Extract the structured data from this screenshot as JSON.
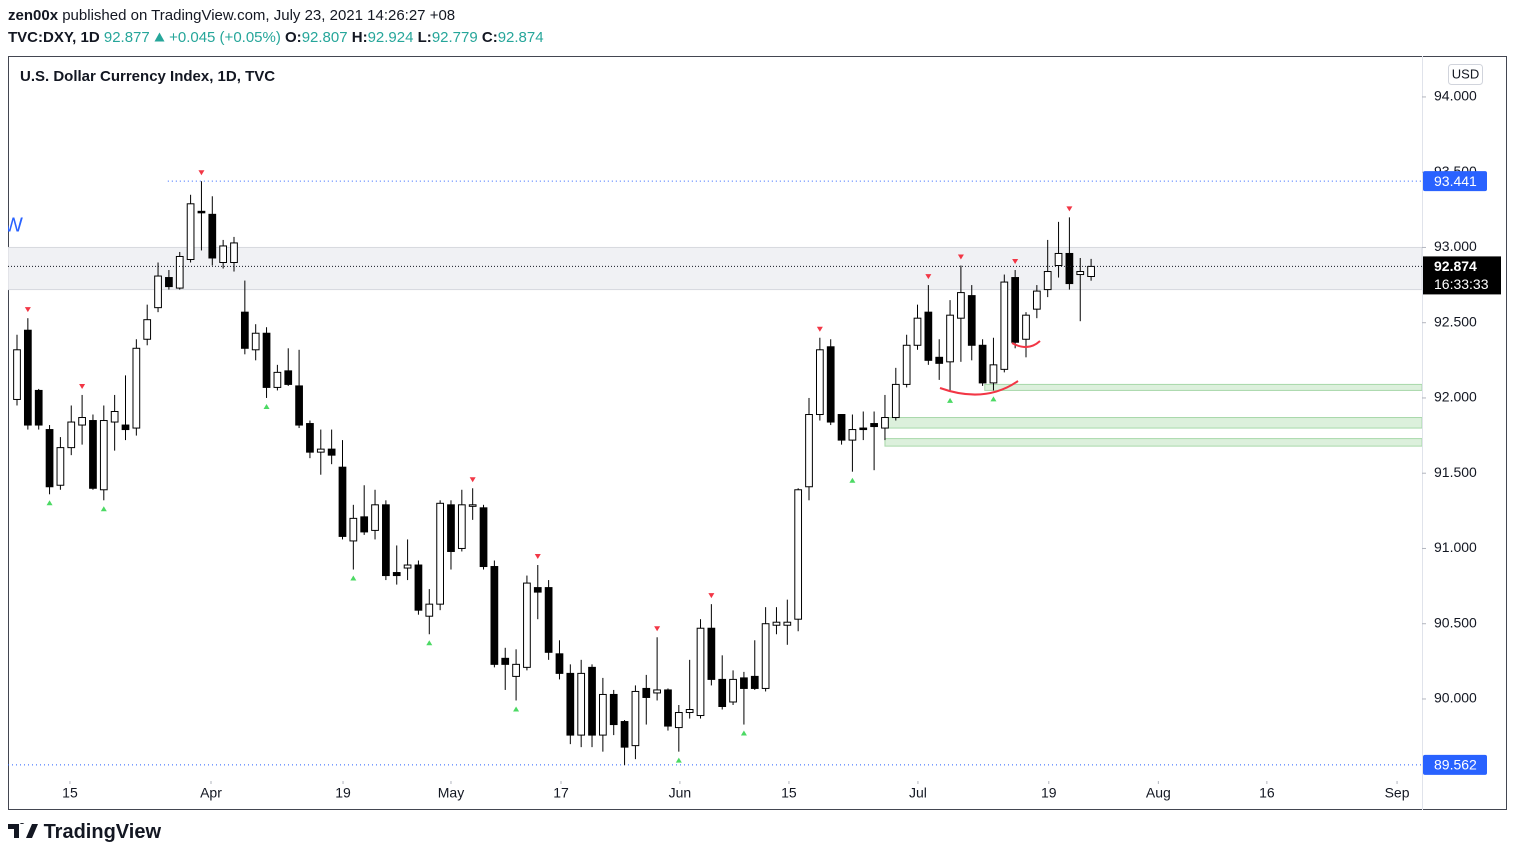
{
  "header": {
    "author": "zen00x",
    "published": "published on TradingView.com, July 23, 2021 14:26:27 +08",
    "symbol": "TVC:DXY, 1D",
    "last": 92.877,
    "change": "+0.045 (+0.05%)",
    "o": "O:",
    "h": "H:",
    "l": "L:",
    "c": "C:"
  },
  "chart_data": {
    "type": "candlestick",
    "title": "U.S. Dollar Currency Index, 1D, TVC",
    "currency": "USD",
    "countdown": "16:33:33",
    "edge_label": "W",
    "open": [
      91.99,
      92.45,
      92.05,
      91.79,
      91.42,
      91.67,
      91.82,
      91.85,
      91.39,
      91.84,
      91.82,
      91.8,
      92.39,
      92.6,
      92.8,
      92.73,
      92.92,
      93.24,
      93.22,
      92.9,
      92.9,
      92.57,
      92.32,
      92.43,
      92.07,
      92.18,
      92.08,
      91.83,
      91.64,
      91.66,
      91.54,
      91.05,
      91.21,
      91.12,
      91.29,
      90.84,
      90.87,
      90.89,
      90.55,
      90.63,
      91.29,
      91.0,
      91.28,
      91.27,
      90.88,
      90.27,
      90.15,
      90.21,
      90.74,
      90.74,
      90.3,
      90.17,
      89.76,
      90.21,
      89.76,
      90.03,
      89.85,
      89.69,
      90.07,
      90.04,
      90.06,
      89.81,
      89.91,
      89.89,
      90.47,
      90.13,
      89.98,
      90.14,
      90.15,
      90.07,
      90.49,
      90.49,
      90.53,
      91.41,
      91.89,
      92.34,
      91.89,
      91.72,
      91.8,
      91.83,
      91.8,
      91.87,
      92.09,
      92.35,
      92.57,
      92.27,
      92.24,
      92.53,
      92.68,
      92.35,
      92.1,
      92.19,
      92.8,
      92.39,
      92.59,
      92.72,
      92.88,
      92.96,
      92.82,
      92.807
    ],
    "high": [
      92.42,
      92.53,
      92.06,
      91.82,
      91.74,
      91.95,
      92.02,
      91.89,
      91.95,
      92.02,
      92.15,
      92.39,
      92.62,
      92.9,
      92.85,
      92.97,
      93.35,
      93.44,
      93.34,
      93.05,
      93.07,
      92.78,
      92.49,
      92.47,
      92.22,
      92.33,
      92.32,
      91.85,
      91.79,
      91.79,
      91.72,
      91.29,
      91.42,
      91.39,
      91.32,
      91.02,
      91.06,
      90.92,
      90.73,
      91.32,
      91.32,
      91.39,
      91.4,
      91.29,
      90.92,
      90.34,
      90.33,
      90.82,
      90.89,
      90.79,
      90.39,
      90.23,
      90.26,
      90.23,
      90.14,
      90.06,
      89.86,
      90.09,
      90.16,
      90.41,
      90.07,
      89.96,
      90.26,
      90.53,
      90.63,
      90.29,
      90.19,
      90.18,
      90.39,
      90.61,
      90.61,
      90.66,
      91.4,
      92.0,
      92.4,
      92.39,
      91.89,
      91.89,
      91.91,
      91.91,
      92.02,
      92.2,
      92.42,
      92.62,
      92.75,
      92.39,
      92.65,
      92.88,
      92.75,
      92.39,
      92.4,
      92.82,
      92.85,
      92.57,
      92.75,
      93.05,
      93.17,
      93.2,
      92.93,
      92.924
    ],
    "low": [
      91.95,
      91.79,
      91.79,
      91.36,
      91.39,
      91.62,
      91.69,
      91.39,
      91.32,
      91.65,
      91.72,
      91.75,
      92.35,
      92.57,
      92.72,
      92.72,
      92.9,
      92.98,
      92.88,
      92.86,
      92.84,
      92.29,
      92.25,
      92.0,
      92.05,
      92.08,
      91.8,
      91.6,
      91.49,
      91.56,
      91.06,
      90.86,
      91.09,
      91.06,
      90.79,
      90.76,
      90.79,
      90.56,
      90.43,
      90.59,
      90.86,
      90.98,
      91.19,
      90.86,
      90.21,
      90.06,
      89.99,
      90.19,
      90.53,
      90.26,
      90.13,
      89.7,
      89.68,
      89.68,
      89.65,
      89.76,
      89.56,
      89.6,
      89.83,
      89.99,
      89.79,
      89.65,
      89.87,
      89.87,
      90.09,
      89.93,
      89.96,
      89.83,
      90.06,
      90.05,
      90.43,
      90.36,
      90.45,
      91.32,
      91.85,
      91.82,
      91.69,
      91.51,
      91.72,
      91.52,
      91.72,
      91.85,
      92.07,
      92.32,
      92.22,
      92.12,
      92.04,
      92.24,
      92.25,
      92.08,
      92.05,
      92.17,
      92.33,
      92.27,
      92.53,
      92.67,
      92.8,
      92.72,
      92.51,
      92.779
    ],
    "close": [
      92.32,
      91.82,
      91.82,
      91.41,
      91.67,
      91.84,
      91.87,
      91.4,
      91.85,
      91.91,
      91.79,
      92.33,
      92.52,
      92.81,
      92.74,
      92.94,
      93.29,
      93.23,
      92.93,
      93.01,
      93.03,
      92.33,
      92.43,
      92.07,
      92.17,
      92.09,
      91.82,
      91.64,
      91.66,
      91.62,
      91.08,
      91.2,
      91.11,
      91.29,
      90.82,
      90.82,
      90.89,
      90.59,
      90.63,
      91.3,
      90.98,
      91.29,
      91.29,
      90.88,
      90.23,
      90.23,
      90.23,
      90.77,
      90.71,
      90.31,
      90.17,
      89.76,
      90.17,
      89.76,
      90.03,
      89.83,
      89.68,
      90.05,
      90.01,
      90.06,
      89.82,
      89.91,
      89.93,
      90.47,
      90.13,
      89.95,
      90.13,
      90.07,
      90.07,
      90.5,
      90.51,
      90.51,
      91.39,
      91.89,
      92.32,
      91.84,
      91.72,
      91.79,
      91.79,
      91.81,
      91.87,
      92.09,
      92.35,
      92.53,
      92.25,
      92.23,
      92.55,
      92.7,
      92.35,
      92.1,
      92.22,
      92.77,
      92.37,
      92.55,
      92.71,
      92.84,
      92.96,
      92.76,
      92.84,
      92.874
    ],
    "up_color": "#ffffff",
    "down_color": "#000000",
    "fractal_highs": [
      1,
      6,
      17,
      42,
      48,
      59,
      64,
      74,
      84,
      87,
      92,
      97
    ],
    "fractal_lows": [
      3,
      8,
      23,
      31,
      38,
      46,
      61,
      67,
      77,
      86,
      90
    ],
    "high_marker_color": "#f23645",
    "low_marker_color": "#4cd964",
    "price_lines": [
      {
        "value": 93.441,
        "start": 13.9,
        "color": "#2962ff"
      },
      {
        "value": 89.562,
        "color": "#2962ff"
      }
    ],
    "zones": [
      {
        "low": 92.72,
        "high": 93.0,
        "color": "#f0f1f4",
        "border": "#d6d8de"
      },
      {
        "low": 92.05,
        "high": 92.09,
        "start": 89.2,
        "color": "#dcf0dc",
        "border": "#a8d8aa"
      },
      {
        "low": 91.8,
        "high": 91.87,
        "start": 80.0,
        "color": "#dcf0dc",
        "border": "#a8d8aa"
      },
      {
        "low": 91.68,
        "high": 91.73,
        "start": 80.0,
        "color": "#dcf0dc",
        "border": "#a8d8aa"
      }
    ],
    "xlim": [
      -0.83,
      129.5
    ],
    "xticks": [
      {
        "value": 4.88,
        "label": "15"
      },
      {
        "value": 17.88,
        "label": "Apr"
      },
      {
        "value": 30.05,
        "label": "19"
      },
      {
        "value": 40.0,
        "label": "May"
      },
      {
        "value": 50.14,
        "label": "17"
      },
      {
        "value": 61.1,
        "label": "Jun"
      },
      {
        "value": 71.15,
        "label": "15"
      },
      {
        "value": 83.04,
        "label": "Jul"
      },
      {
        "value": 95.1,
        "label": "19"
      },
      {
        "value": 105.2,
        "label": "Aug"
      },
      {
        "value": 115.2,
        "label": "16"
      },
      {
        "value": 127.2,
        "label": "Sep"
      }
    ],
    "ylim": [
      89.455,
      94.272
    ],
    "yticks": [
      {
        "value": 90,
        "label": "90.000"
      },
      {
        "value": 90.5,
        "label": "90.500"
      },
      {
        "value": 91,
        "label": "91.000"
      },
      {
        "value": 91.5,
        "label": "91.500"
      },
      {
        "value": 92,
        "label": "92.000"
      },
      {
        "value": 92.5,
        "label": "92.500"
      },
      {
        "value": 93,
        "label": "93.000"
      },
      {
        "value": 93.5,
        "label": "93.500"
      },
      {
        "value": 94,
        "label": "94.000"
      }
    ],
    "grid": false
  },
  "footer": {
    "brand": "TradingView"
  }
}
